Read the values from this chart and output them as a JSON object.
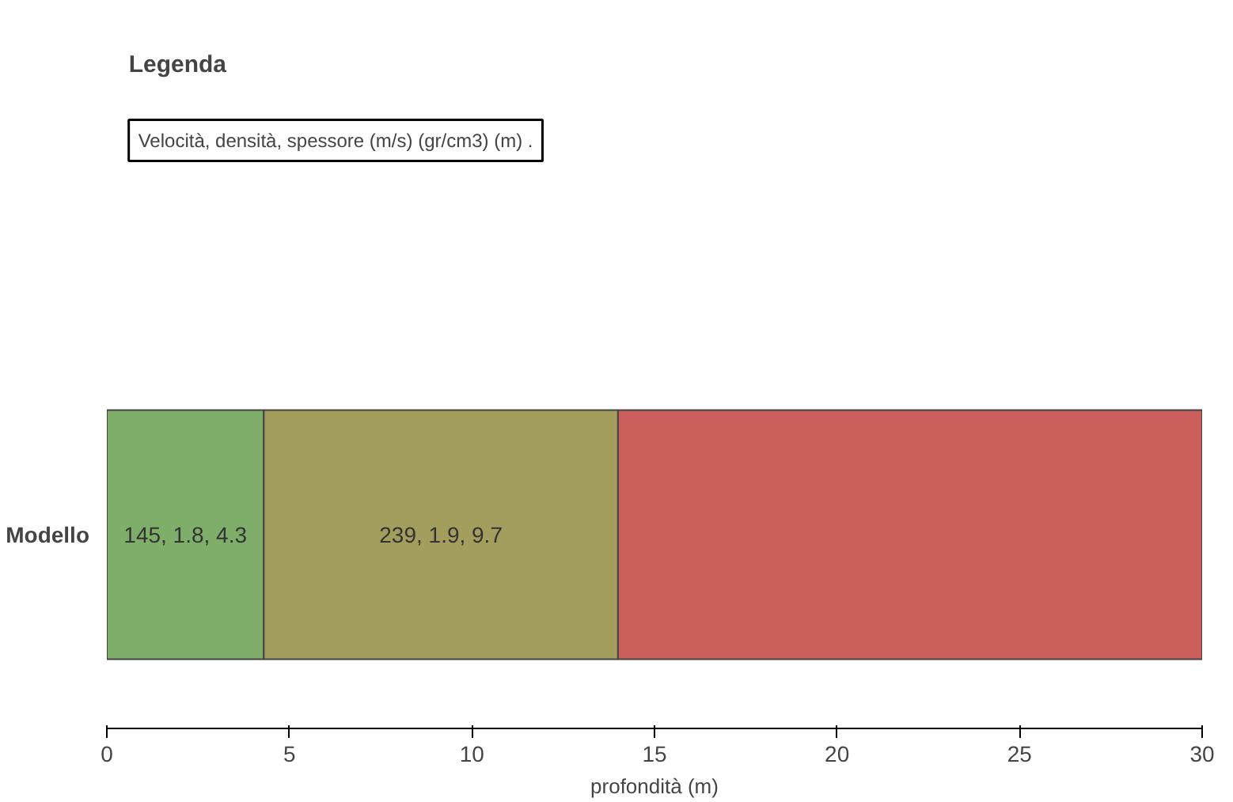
{
  "chart_data": {
    "type": "bar",
    "orientation": "horizontal",
    "stacked": true,
    "categories": [
      "Modello"
    ],
    "series": [
      {
        "color": "#7fae6a",
        "values": [
          4.3
        ],
        "value_labels": [
          "145, 1.8, 4.3"
        ]
      },
      {
        "color": "#a39d5e",
        "values": [
          9.7
        ],
        "value_labels": [
          "239, 1.9, 9.7"
        ]
      },
      {
        "color": "#c95e5a",
        "values": [
          16
        ],
        "value_labels": [
          null
        ]
      }
    ],
    "xlabel": "profondità (m)",
    "xlim": [
      0,
      30
    ],
    "xticks": [
      0,
      5,
      10,
      15,
      20,
      25,
      30
    ],
    "legend_title": "Legenda",
    "annotations": [
      "Velocità, densità, spessore (m/s) (gr/cm3) (m) ."
    ],
    "grid": false
  }
}
